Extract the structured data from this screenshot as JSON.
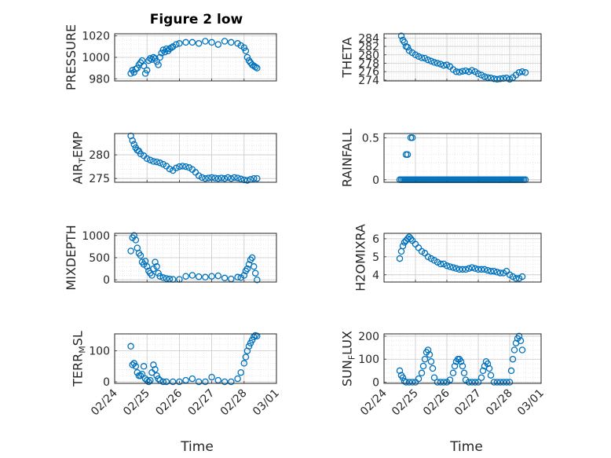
{
  "figure": {
    "title": "Figure 2 low",
    "xaxis_title": "Time",
    "x_ticks": [
      "02/24",
      "02/25",
      "02/26",
      "02/27",
      "02/28",
      "03/01"
    ],
    "marker_color": "#0072BD"
  },
  "chart_data": [
    {
      "type": "scatter",
      "title": "Figure 2 low",
      "ylabel": "PRESSURE",
      "xlabel": "",
      "ylim": [
        978,
        1022
      ],
      "yticks": [
        980,
        1000,
        1020
      ],
      "ytick_labels": [
        "980",
        "1000",
        "1020"
      ],
      "grid": true,
      "marker": "circle",
      "x": [
        0.5,
        0.55,
        0.6,
        0.65,
        0.7,
        0.75,
        0.8,
        0.85,
        0.9,
        0.95,
        1.0,
        1.05,
        1.1,
        1.15,
        1.2,
        1.25,
        1.3,
        1.35,
        1.4,
        1.45,
        1.5,
        1.55,
        1.6,
        1.65,
        1.7,
        1.75,
        1.8,
        1.9,
        2.0,
        2.2,
        2.4,
        2.6,
        2.8,
        3.0,
        3.2,
        3.4,
        3.6,
        3.8,
        3.9,
        4.0,
        4.05,
        4.1,
        4.15,
        4.2,
        4.25,
        4.3,
        4.35,
        4.4
      ],
      "y": [
        985,
        988,
        986,
        989,
        990,
        993,
        995,
        997,
        992,
        985,
        988,
        997,
        999,
        998,
        1000,
        999,
        996,
        993,
        1000,
        1004,
        1007,
        1005,
        1008,
        1006,
        1008,
        1009,
        1010,
        1012,
        1013,
        1014,
        1014,
        1013,
        1015,
        1014,
        1012,
        1015,
        1014,
        1013,
        1011,
        1009,
        1006,
        1000,
        997,
        995,
        993,
        992,
        991,
        990
      ]
    },
    {
      "type": "scatter",
      "ylabel": "THETA",
      "xlabel": "",
      "ylim": [
        273.8,
        285
      ],
      "yticks": [
        274,
        276,
        278,
        280,
        282,
        284
      ],
      "ytick_labels": [
        "274",
        "276",
        "278",
        "280",
        "282",
        "284"
      ],
      "grid": true,
      "marker": "circle",
      "x": [
        0.55,
        0.6,
        0.65,
        0.7,
        0.75,
        0.8,
        0.9,
        1.0,
        1.1,
        1.2,
        1.3,
        1.4,
        1.5,
        1.6,
        1.7,
        1.8,
        1.9,
        2.0,
        2.1,
        2.2,
        2.3,
        2.4,
        2.5,
        2.6,
        2.7,
        2.8,
        2.9,
        3.0,
        3.1,
        3.2,
        3.3,
        3.4,
        3.5,
        3.6,
        3.7,
        3.8,
        3.9,
        4.0,
        4.1,
        4.2,
        4.3,
        4.4,
        4.5
      ],
      "y": [
        284.5,
        283.5,
        283,
        282,
        281.8,
        281,
        280.5,
        280,
        279.6,
        279.3,
        279.2,
        278.8,
        278.5,
        278.2,
        278,
        277.8,
        277.5,
        277.6,
        277.2,
        276.5,
        276,
        275.9,
        276.1,
        276.2,
        276,
        276.3,
        276,
        275.5,
        275.2,
        274.8,
        274.6,
        274.5,
        274.3,
        274.2,
        274.3,
        274.4,
        274.5,
        274.2,
        274.6,
        275.2,
        275.8,
        276,
        275.8
      ]
    },
    {
      "type": "scatter",
      "ylabel": "AIR_TEMP",
      "xlabel": "",
      "ylim": [
        274.2,
        284.5
      ],
      "yticks": [
        275,
        280
      ],
      "ytick_labels": [
        "275",
        "280"
      ],
      "grid": true,
      "marker": "circle",
      "x": [
        0.5,
        0.55,
        0.6,
        0.65,
        0.7,
        0.75,
        0.8,
        0.9,
        1.0,
        1.1,
        1.2,
        1.3,
        1.4,
        1.5,
        1.6,
        1.7,
        1.8,
        1.9,
        2.0,
        2.1,
        2.2,
        2.3,
        2.4,
        2.5,
        2.6,
        2.7,
        2.8,
        2.9,
        3.0,
        3.1,
        3.2,
        3.3,
        3.4,
        3.5,
        3.6,
        3.7,
        3.8,
        3.9,
        4.0,
        4.1,
        4.2,
        4.3,
        4.4
      ],
      "y": [
        284,
        283,
        282.2,
        281.5,
        281,
        280.8,
        280.2,
        279.8,
        279.2,
        278.9,
        278.6,
        278.5,
        278.3,
        278,
        277.6,
        277,
        276.7,
        277.2,
        277.5,
        277.6,
        277.5,
        277.3,
        276.9,
        276.3,
        275.6,
        275.2,
        275,
        275.1,
        275.2,
        275.1,
        275,
        275.1,
        275,
        275.2,
        275,
        275.2,
        275.1,
        274.9,
        274.7,
        274.6,
        274.8,
        275,
        275
      ]
    },
    {
      "type": "scatter",
      "ylabel": "RAINFALL",
      "xlabel": "",
      "ylim": [
        -0.03,
        0.55
      ],
      "yticks": [
        0,
        0.5
      ],
      "ytick_labels": [
        "0",
        "0.5"
      ],
      "grid": true,
      "marker": "circle",
      "x": [
        0.5,
        0.55,
        0.6,
        0.65,
        0.7,
        0.75,
        0.8,
        0.85,
        0.9,
        0.95,
        1.0,
        1.05,
        1.1,
        1.15,
        1.2,
        1.25,
        1.3,
        1.35,
        1.4,
        1.45,
        1.5,
        1.55,
        1.6,
        1.65,
        1.7,
        1.75,
        1.8,
        1.85,
        1.9,
        1.95,
        2.0,
        2.05,
        2.1,
        2.15,
        2.2,
        2.25,
        2.3,
        2.35,
        2.4,
        2.45,
        2.5,
        2.55,
        2.6,
        2.65,
        2.7,
        2.75,
        2.8,
        2.85,
        2.9,
        2.95,
        3.0,
        3.05,
        3.1,
        3.15,
        3.2,
        3.25,
        3.3,
        3.35,
        3.4,
        3.45,
        3.5,
        3.55,
        3.6,
        3.65,
        3.7,
        3.75,
        3.8,
        3.85,
        3.9,
        3.95,
        4.0,
        4.05,
        4.1,
        4.15,
        4.2,
        4.25,
        4.3,
        4.35,
        4.4,
        4.45,
        4.5,
        0.7,
        0.75,
        0.85,
        0.9
      ],
      "y": [
        0,
        0,
        0,
        0,
        0,
        0,
        0,
        0,
        0,
        0,
        0,
        0,
        0,
        0,
        0,
        0,
        0,
        0,
        0,
        0,
        0,
        0,
        0,
        0,
        0,
        0,
        0,
        0,
        0,
        0,
        0,
        0,
        0,
        0,
        0,
        0,
        0,
        0,
        0,
        0,
        0,
        0,
        0,
        0,
        0,
        0,
        0,
        0,
        0,
        0,
        0,
        0,
        0,
        0,
        0,
        0,
        0,
        0,
        0,
        0,
        0,
        0,
        0,
        0,
        0,
        0,
        0,
        0,
        0,
        0,
        0,
        0,
        0,
        0,
        0,
        0,
        0,
        0,
        0,
        0,
        0,
        0.3,
        0.3,
        0.5,
        0.5
      ]
    },
    {
      "type": "scatter",
      "ylabel": "MIXDEPTH",
      "xlabel": "",
      "ylim": [
        -50,
        1050
      ],
      "yticks": [
        0,
        500,
        1000
      ],
      "ytick_labels": [
        "0",
        "500",
        "1000"
      ],
      "grid": true,
      "marker": "circle",
      "x": [
        0.5,
        0.55,
        0.6,
        0.65,
        0.7,
        0.75,
        0.8,
        0.85,
        0.9,
        0.95,
        1.0,
        1.05,
        1.1,
        1.15,
        1.2,
        1.25,
        1.3,
        1.35,
        1.4,
        1.5,
        1.6,
        1.7,
        1.8,
        2.0,
        2.2,
        2.4,
        2.6,
        2.8,
        3.0,
        3.2,
        3.4,
        3.6,
        3.8,
        3.9,
        4.0,
        4.05,
        4.1,
        4.15,
        4.2,
        4.25,
        4.3,
        4.35,
        4.4
      ],
      "y": [
        650,
        950,
        1000,
        900,
        720,
        600,
        550,
        400,
        350,
        420,
        300,
        200,
        150,
        100,
        250,
        400,
        300,
        150,
        80,
        50,
        30,
        20,
        10,
        10,
        80,
        100,
        70,
        60,
        80,
        90,
        40,
        20,
        60,
        50,
        100,
        200,
        250,
        350,
        450,
        500,
        300,
        150,
        0
      ]
    },
    {
      "type": "scatter",
      "ylabel": "H2OMIXRA",
      "xlabel": "",
      "ylim": [
        3.6,
        6.3
      ],
      "yticks": [
        4,
        5,
        6
      ],
      "ytick_labels": [
        "4",
        "5",
        "6"
      ],
      "grid": true,
      "marker": "circle",
      "x": [
        0.5,
        0.55,
        0.6,
        0.65,
        0.7,
        0.75,
        0.8,
        0.85,
        0.9,
        1.0,
        1.1,
        1.2,
        1.3,
        1.4,
        1.5,
        1.6,
        1.7,
        1.8,
        1.9,
        2.0,
        2.1,
        2.2,
        2.3,
        2.4,
        2.5,
        2.6,
        2.7,
        2.8,
        2.9,
        3.0,
        3.1,
        3.2,
        3.3,
        3.4,
        3.5,
        3.6,
        3.7,
        3.8,
        3.9,
        4.0,
        4.1,
        4.2,
        4.3,
        4.4
      ],
      "y": [
        4.9,
        5.3,
        5.6,
        5.8,
        5.9,
        6.0,
        6.1,
        6.0,
        5.9,
        5.7,
        5.5,
        5.3,
        5.2,
        5.0,
        4.9,
        4.8,
        4.7,
        4.6,
        4.6,
        4.5,
        4.45,
        4.4,
        4.35,
        4.3,
        4.3,
        4.3,
        4.35,
        4.4,
        4.35,
        4.3,
        4.3,
        4.3,
        4.25,
        4.2,
        4.2,
        4.15,
        4.1,
        4.1,
        4.2,
        4.0,
        3.9,
        3.8,
        3.8,
        3.9
      ]
    },
    {
      "type": "scatter",
      "ylabel": "TERR_MSL",
      "xlabel": "Time",
      "ylim": [
        -5,
        155
      ],
      "yticks": [
        0,
        100
      ],
      "ytick_labels": [
        "0",
        "100"
      ],
      "grid": true,
      "marker": "circle",
      "x": [
        0.5,
        0.55,
        0.6,
        0.65,
        0.7,
        0.75,
        0.8,
        0.85,
        0.9,
        0.95,
        1.0,
        1.05,
        1.1,
        1.15,
        1.2,
        1.25,
        1.3,
        1.35,
        1.4,
        1.5,
        1.6,
        1.8,
        2.0,
        2.2,
        2.4,
        2.6,
        2.8,
        3.0,
        3.2,
        3.4,
        3.6,
        3.8,
        3.9,
        4.0,
        4.05,
        4.1,
        4.15,
        4.2,
        4.25,
        4.3,
        4.35,
        4.4
      ],
      "y": [
        115,
        55,
        60,
        50,
        30,
        20,
        20,
        25,
        50,
        10,
        5,
        0,
        5,
        30,
        55,
        40,
        20,
        10,
        5,
        0,
        0,
        0,
        0,
        5,
        10,
        0,
        0,
        15,
        5,
        0,
        0,
        10,
        30,
        60,
        80,
        100,
        115,
        125,
        135,
        145,
        150,
        148
      ]
    },
    {
      "type": "scatter",
      "ylabel": "SUN_FLUX",
      "xlabel": "Time",
      "ylim": [
        -5,
        210
      ],
      "yticks": [
        0,
        100,
        200
      ],
      "ytick_labels": [
        "0",
        "100",
        "200"
      ],
      "grid": true,
      "marker": "circle",
      "x": [
        0.5,
        0.55,
        0.6,
        0.65,
        0.7,
        0.8,
        0.9,
        1.0,
        1.1,
        1.2,
        1.25,
        1.3,
        1.35,
        1.4,
        1.45,
        1.5,
        1.55,
        1.6,
        1.7,
        1.8,
        1.9,
        2.0,
        2.1,
        2.2,
        2.25,
        2.3,
        2.35,
        2.4,
        2.45,
        2.5,
        2.55,
        2.6,
        2.7,
        2.8,
        2.9,
        3.0,
        3.1,
        3.15,
        3.2,
        3.25,
        3.3,
        3.35,
        3.4,
        3.5,
        3.6,
        3.7,
        3.8,
        3.9,
        4.0,
        4.05,
        4.1,
        4.15,
        4.2,
        4.25,
        4.3,
        4.35,
        4.4
      ],
      "y": [
        50,
        30,
        20,
        5,
        0,
        0,
        0,
        0,
        15,
        40,
        70,
        100,
        130,
        140,
        120,
        90,
        60,
        20,
        0,
        0,
        0,
        0,
        10,
        40,
        70,
        90,
        100,
        100,
        90,
        70,
        40,
        10,
        0,
        0,
        0,
        0,
        20,
        50,
        70,
        90,
        80,
        60,
        30,
        0,
        0,
        0,
        0,
        0,
        0,
        50,
        100,
        140,
        170,
        190,
        200,
        180,
        140
      ]
    }
  ]
}
